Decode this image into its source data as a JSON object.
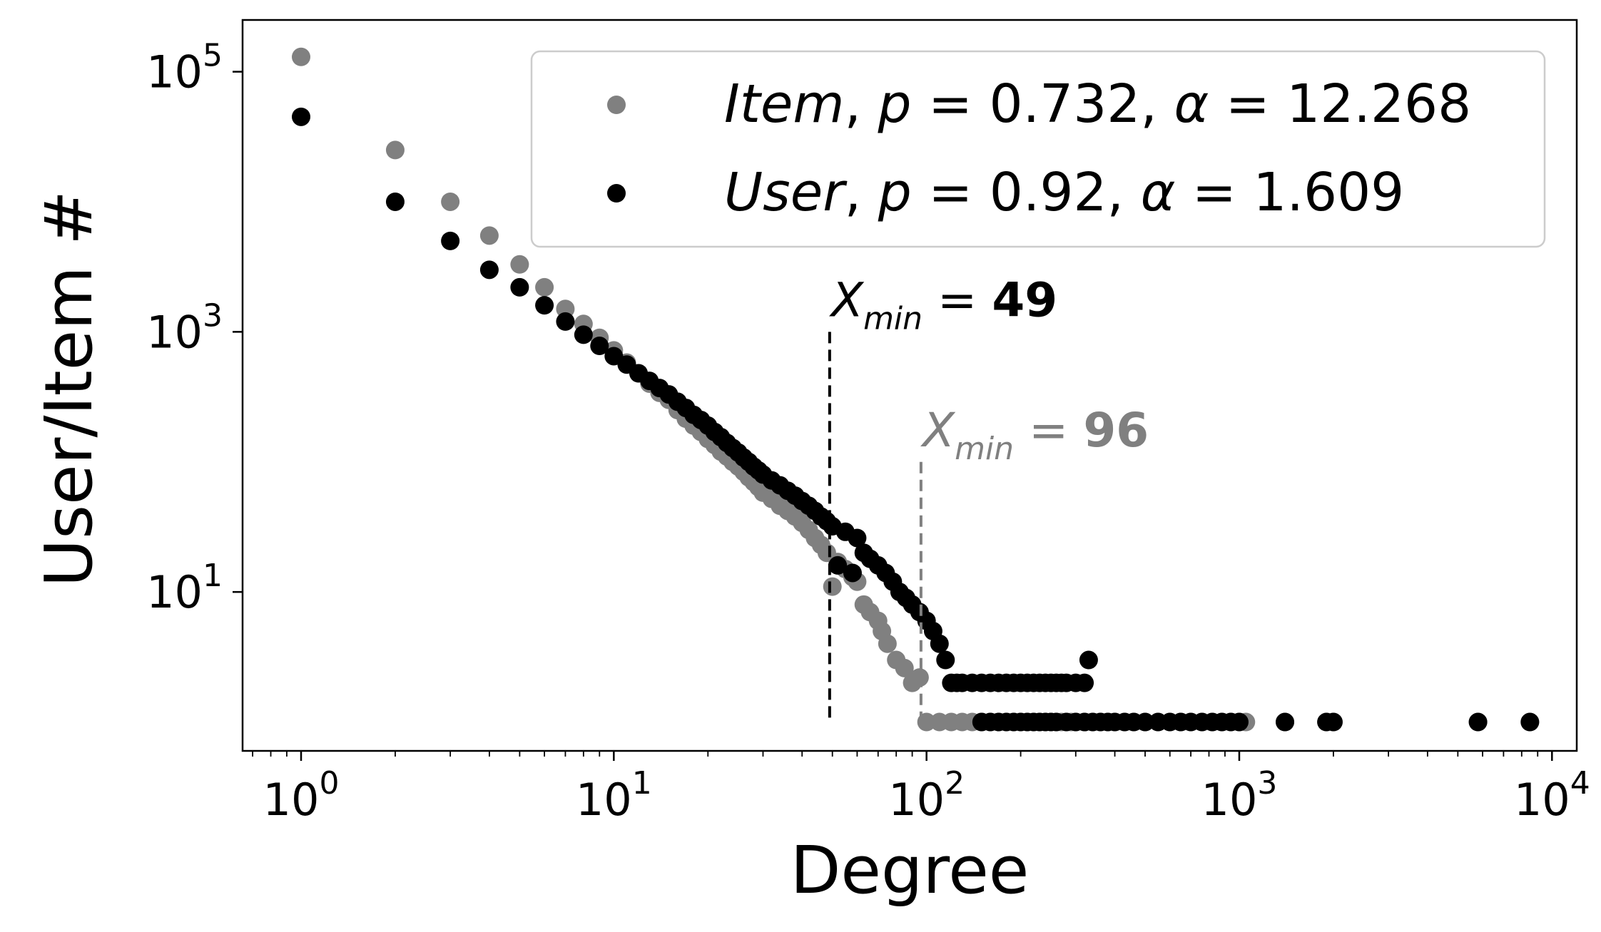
{
  "chart_data": {
    "type": "scatter",
    "x_scale": "log",
    "y_scale": "log",
    "xlabel": "Degree",
    "ylabel": "User/Item #",
    "xlim": [
      0.65,
      12000
    ],
    "ylim": [
      0.6,
      250000
    ],
    "x_ticks": [
      {
        "value": 1,
        "exp": "0"
      },
      {
        "value": 10,
        "exp": "1"
      },
      {
        "value": 100,
        "exp": "2"
      },
      {
        "value": 1000,
        "exp": "3"
      },
      {
        "value": 10000,
        "exp": "4"
      }
    ],
    "y_ticks": [
      {
        "value": 10,
        "exp": "1"
      },
      {
        "value": 1000,
        "exp": "3"
      },
      {
        "value": 100000,
        "exp": "5"
      }
    ],
    "tick_base": "10",
    "grid": false,
    "legend_position": "top-right",
    "series": [
      {
        "name": "Item, p = 0.732, α = 12.268",
        "legend": {
          "italic_name": "Item",
          "p_sym": "p",
          "p_val": "0.732",
          "a_sym": "α",
          "a_val": "12.268"
        },
        "color": "#808080",
        "points": [
          [
            1,
            130000
          ],
          [
            2,
            25000
          ],
          [
            3,
            10000
          ],
          [
            4,
            5500
          ],
          [
            5,
            3300
          ],
          [
            6,
            2200
          ],
          [
            7,
            1500
          ],
          [
            8,
            1150
          ],
          [
            9,
            900
          ],
          [
            10,
            720
          ],
          [
            11,
            580
          ],
          [
            12,
            480
          ],
          [
            13,
            400
          ],
          [
            14,
            340
          ],
          [
            15,
            300
          ],
          [
            16,
            250
          ],
          [
            17,
            215
          ],
          [
            18,
            190
          ],
          [
            19,
            170
          ],
          [
            20,
            150
          ],
          [
            21,
            135
          ],
          [
            22,
            120
          ],
          [
            23,
            110
          ],
          [
            24,
            100
          ],
          [
            25,
            92
          ],
          [
            26,
            84
          ],
          [
            27,
            76
          ],
          [
            28,
            70
          ],
          [
            29,
            64
          ],
          [
            30,
            58
          ],
          [
            32,
            52
          ],
          [
            34,
            46
          ],
          [
            36,
            42
          ],
          [
            38,
            38
          ],
          [
            40,
            34
          ],
          [
            42,
            30
          ],
          [
            44,
            26
          ],
          [
            46,
            23
          ],
          [
            48,
            20
          ],
          [
            50,
            11
          ],
          [
            52,
            17
          ],
          [
            55,
            15
          ],
          [
            58,
            13
          ],
          [
            60,
            12
          ],
          [
            63,
            8
          ],
          [
            66,
            7
          ],
          [
            70,
            6
          ],
          [
            72,
            5
          ],
          [
            75,
            4
          ],
          [
            80,
            3
          ],
          [
            85,
            2.6
          ],
          [
            90,
            2
          ],
          [
            95,
            2.2
          ],
          [
            100,
            1
          ],
          [
            110,
            1
          ],
          [
            120,
            1
          ],
          [
            130,
            1
          ],
          [
            140,
            1
          ],
          [
            150,
            1
          ],
          [
            160,
            1
          ],
          [
            170,
            1
          ],
          [
            180,
            1
          ],
          [
            190,
            1
          ],
          [
            200,
            1
          ],
          [
            210,
            1
          ],
          [
            220,
            1
          ],
          [
            230,
            1
          ],
          [
            240,
            1
          ],
          [
            250,
            1
          ],
          [
            260,
            1
          ],
          [
            270,
            1
          ],
          [
            280,
            1
          ],
          [
            290,
            1
          ],
          [
            300,
            1
          ],
          [
            320,
            1
          ],
          [
            340,
            1
          ],
          [
            360,
            1
          ],
          [
            380,
            1
          ],
          [
            400,
            1
          ],
          [
            430,
            1
          ],
          [
            460,
            1
          ],
          [
            500,
            1
          ],
          [
            550,
            1
          ],
          [
            600,
            1
          ],
          [
            650,
            1
          ],
          [
            700,
            1
          ],
          [
            760,
            1
          ],
          [
            820,
            1
          ],
          [
            880,
            1
          ],
          [
            940,
            1
          ],
          [
            1000,
            1
          ],
          [
            1050,
            1
          ],
          [
            1400,
            1
          ],
          [
            1900,
            1
          ],
          [
            2000,
            1
          ],
          [
            5800,
            1
          ],
          [
            8500,
            1
          ]
        ]
      },
      {
        "name": "User, p = 0.92, α = 1.609",
        "legend": {
          "italic_name": "User",
          "p_sym": "p",
          "p_val": "0.92",
          "a_sym": "α",
          "a_val": "1.609"
        },
        "color": "#000000",
        "points": [
          [
            1,
            45000
          ],
          [
            2,
            10000
          ],
          [
            3,
            5000
          ],
          [
            4,
            3000
          ],
          [
            5,
            2200
          ],
          [
            6,
            1600
          ],
          [
            7,
            1200
          ],
          [
            8,
            950
          ],
          [
            9,
            780
          ],
          [
            10,
            650
          ],
          [
            11,
            560
          ],
          [
            12,
            480
          ],
          [
            13,
            420
          ],
          [
            14,
            370
          ],
          [
            15,
            330
          ],
          [
            16,
            290
          ],
          [
            17,
            260
          ],
          [
            18,
            230
          ],
          [
            19,
            210
          ],
          [
            20,
            190
          ],
          [
            21,
            170
          ],
          [
            22,
            155
          ],
          [
            23,
            140
          ],
          [
            24,
            128
          ],
          [
            25,
            118
          ],
          [
            26,
            108
          ],
          [
            27,
            100
          ],
          [
            28,
            92
          ],
          [
            29,
            86
          ],
          [
            30,
            80
          ],
          [
            32,
            72
          ],
          [
            34,
            66
          ],
          [
            36,
            60
          ],
          [
            38,
            55
          ],
          [
            40,
            50
          ],
          [
            42,
            46
          ],
          [
            44,
            42
          ],
          [
            46,
            38
          ],
          [
            48,
            35
          ],
          [
            50,
            32
          ],
          [
            52,
            16
          ],
          [
            55,
            29
          ],
          [
            58,
            14
          ],
          [
            60,
            26
          ],
          [
            63,
            20
          ],
          [
            66,
            18
          ],
          [
            70,
            16
          ],
          [
            74,
            14
          ],
          [
            78,
            12
          ],
          [
            82,
            10
          ],
          [
            86,
            9
          ],
          [
            90,
            8
          ],
          [
            95,
            7
          ],
          [
            100,
            6
          ],
          [
            105,
            5
          ],
          [
            110,
            4
          ],
          [
            115,
            3
          ],
          [
            120,
            2
          ],
          [
            125,
            2
          ],
          [
            130,
            2
          ],
          [
            140,
            2
          ],
          [
            150,
            2
          ],
          [
            160,
            2
          ],
          [
            170,
            2
          ],
          [
            180,
            2
          ],
          [
            190,
            2
          ],
          [
            200,
            2
          ],
          [
            210,
            2
          ],
          [
            220,
            2
          ],
          [
            230,
            2
          ],
          [
            240,
            2
          ],
          [
            250,
            2
          ],
          [
            260,
            2
          ],
          [
            270,
            2
          ],
          [
            280,
            2
          ],
          [
            300,
            2
          ],
          [
            320,
            2
          ],
          [
            330,
            3
          ],
          [
            150,
            1
          ],
          [
            160,
            1
          ],
          [
            170,
            1
          ],
          [
            180,
            1
          ],
          [
            190,
            1
          ],
          [
            200,
            1
          ],
          [
            210,
            1
          ],
          [
            220,
            1
          ],
          [
            230,
            1
          ],
          [
            240,
            1
          ],
          [
            250,
            1
          ],
          [
            260,
            1
          ],
          [
            280,
            1
          ],
          [
            300,
            1
          ],
          [
            320,
            1
          ],
          [
            340,
            1
          ],
          [
            360,
            1
          ],
          [
            380,
            1
          ],
          [
            400,
            1
          ],
          [
            430,
            1
          ],
          [
            460,
            1
          ],
          [
            500,
            1
          ],
          [
            550,
            1
          ],
          [
            600,
            1
          ],
          [
            650,
            1
          ],
          [
            700,
            1
          ],
          [
            760,
            1
          ],
          [
            820,
            1
          ],
          [
            880,
            1
          ],
          [
            940,
            1
          ],
          [
            1000,
            1
          ],
          [
            1400,
            1
          ],
          [
            1900,
            1
          ],
          [
            2000,
            1
          ],
          [
            5800,
            1
          ],
          [
            8500,
            1
          ]
        ]
      }
    ],
    "annotations": [
      {
        "x": 49,
        "y_top": 1000,
        "y_bottom": 1,
        "label_sym": "X",
        "label_sub": "min",
        "eq": "=",
        "label_val": "49",
        "color": "#000000"
      },
      {
        "x": 96,
        "y_top": 100,
        "y_bottom": 1,
        "label_sym": "X",
        "label_sub": "min",
        "eq": "=",
        "label_val": "96",
        "color": "#808080"
      }
    ]
  }
}
